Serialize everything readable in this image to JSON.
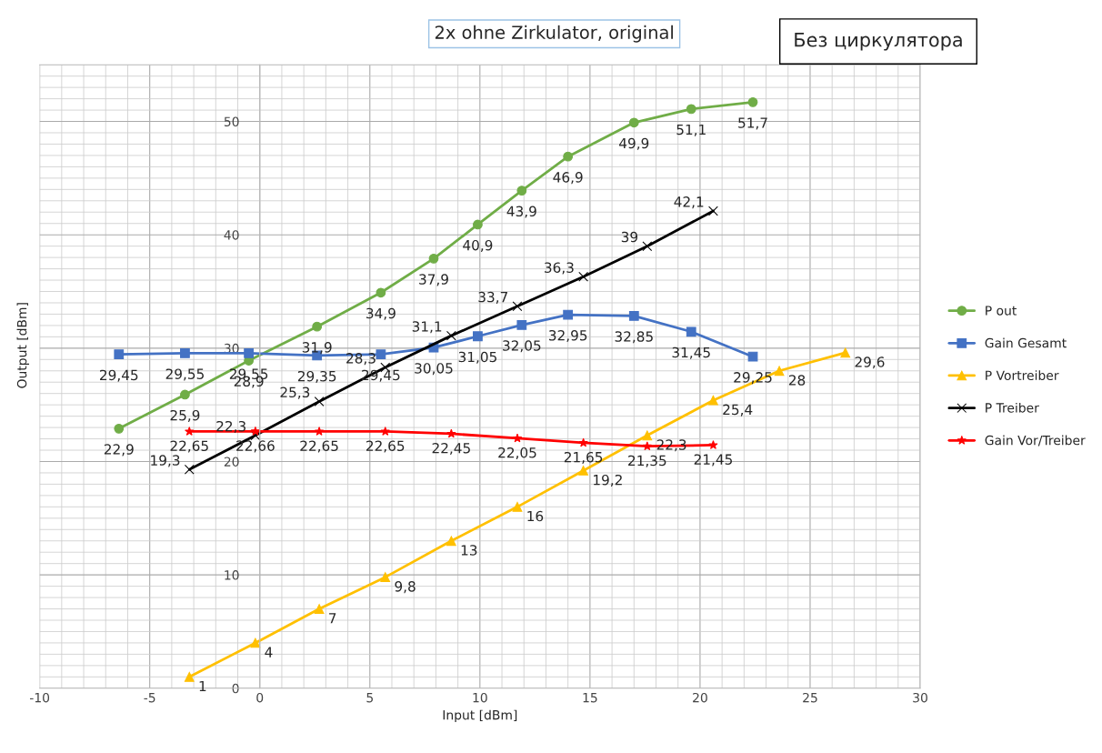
{
  "chart_data": {
    "type": "line",
    "title": "2x ohne Zirkulator, original",
    "xlabel": "Input [dBm]",
    "ylabel": "Output [dBm]",
    "annotations": [
      "Без циркулятора"
    ],
    "xlim": [
      -10,
      30
    ],
    "ylim": [
      0,
      55
    ],
    "xticks": [
      -10,
      -5,
      0,
      5,
      10,
      15,
      20,
      25,
      30
    ],
    "yticks": [
      0,
      10,
      20,
      30,
      40,
      50
    ],
    "grid": true,
    "legend": "right",
    "line_style": "solid",
    "series": [
      {
        "name": "P out",
        "color": "#70ad47",
        "marker": "circle",
        "x": [
          -6.4,
          -3.4,
          -0.5,
          2.6,
          5.5,
          7.9,
          9.9,
          11.9,
          14.0,
          17.0,
          19.6,
          22.4
        ],
        "values": [
          22.9,
          25.9,
          28.9,
          31.9,
          34.9,
          37.9,
          40.9,
          43.9,
          46.9,
          49.9,
          51.1,
          51.7
        ],
        "value_labels": [
          "22,9",
          "25,9",
          "28,9",
          "31,9",
          "34,9",
          "37,9",
          "40,9",
          "43,9",
          "46,9",
          "49,9",
          "51,1",
          "51,7"
        ]
      },
      {
        "name": "Gain Gesamt",
        "color": "#4472c4",
        "marker": "square",
        "x": [
          -6.4,
          -3.4,
          -0.5,
          2.6,
          5.5,
          7.9,
          9.9,
          11.9,
          14.0,
          17.0,
          19.6,
          22.4
        ],
        "values": [
          29.45,
          29.55,
          29.55,
          29.35,
          29.45,
          30.05,
          31.05,
          32.05,
          32.95,
          32.85,
          31.45,
          29.25
        ],
        "value_labels": [
          "29,45",
          "29,55",
          "29,55",
          "29,35",
          "29,45",
          "30,05",
          "31,05",
          "32,05",
          "32,95",
          "32,85",
          "31,45",
          "29,25"
        ]
      },
      {
        "name": "P Vortreiber",
        "color": "#ffc000",
        "marker": "triangle",
        "x": [
          -3.2,
          -0.2,
          2.7,
          5.7,
          8.7,
          11.7,
          14.7,
          17.6,
          20.6,
          23.6,
          26.6
        ],
        "values": [
          1,
          4,
          7,
          9.8,
          13,
          16,
          19.2,
          22.3,
          25.4,
          28,
          29.6
        ],
        "value_labels": [
          "1",
          "4",
          "7",
          "9,8",
          "13",
          "16",
          "19,2",
          "22,3",
          "25,4",
          "28",
          "29,6"
        ]
      },
      {
        "name": "P Treiber",
        "color": "#000000",
        "marker": "cross",
        "x": [
          -3.2,
          -0.2,
          2.7,
          5.7,
          8.7,
          11.7,
          14.7,
          17.6,
          20.6
        ],
        "values": [
          19.3,
          22.3,
          25.3,
          28.3,
          31.1,
          33.7,
          36.3,
          39,
          42.1
        ],
        "value_labels": [
          "19,3",
          "22,3",
          "25,3",
          "28,3",
          "31,1",
          "33,7",
          "36,3",
          "39",
          "42,1"
        ]
      },
      {
        "name": "Gain Vor/Treiber",
        "color": "#ff0000",
        "marker": "star",
        "x": [
          -3.2,
          -0.2,
          2.7,
          5.7,
          8.7,
          11.7,
          14.7,
          17.6,
          20.6
        ],
        "values": [
          22.65,
          22.66,
          22.65,
          22.65,
          22.45,
          22.05,
          21.65,
          21.35,
          21.45
        ],
        "value_labels": [
          "22,65",
          "22,66",
          "22,65",
          "22,65",
          "22,45",
          "22,05",
          "21,65",
          "21,35",
          "21,45"
        ]
      }
    ]
  }
}
